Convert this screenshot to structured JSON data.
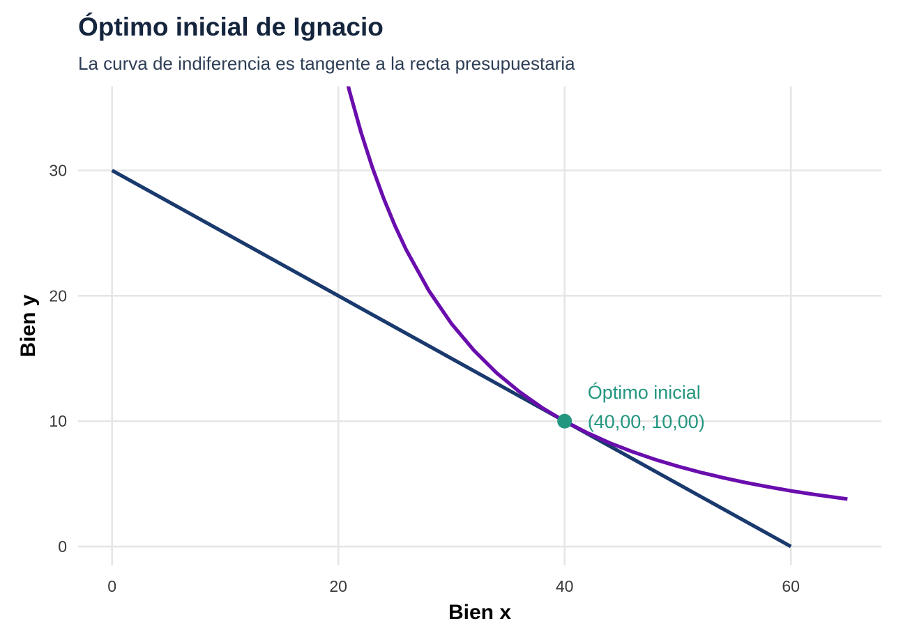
{
  "chart_data": {
    "type": "line",
    "title": "Óptimo inicial de Ignacio",
    "subtitle": "La curva de indiferencia es tangente a la recta presupuestaria",
    "xlabel": "Bien x",
    "ylabel": "Bien y",
    "xlim": [
      -3,
      68
    ],
    "ylim": [
      -1.5,
      36.7
    ],
    "x_ticks": [
      0,
      20,
      40,
      60
    ],
    "y_ticks": [
      0,
      10,
      20,
      30
    ],
    "x_tick_labels": [
      "0",
      "20",
      "40",
      "60"
    ],
    "y_tick_labels": [
      "0",
      "10",
      "20",
      "30"
    ],
    "grid": true,
    "series": [
      {
        "kind": "budget_line",
        "color": "#1a3a6e",
        "x": [
          0,
          60
        ],
        "y": [
          30,
          0
        ]
      },
      {
        "kind": "indifference_curve",
        "color": "#6a0dad",
        "x": [
          20.6,
          21,
          22,
          23,
          24,
          25,
          26,
          28,
          30,
          32,
          34,
          36,
          38,
          40,
          42,
          44,
          46,
          48,
          50,
          52,
          54,
          56,
          58,
          60,
          62,
          65
        ],
        "y": [
          37.7,
          36.28,
          33.06,
          30.25,
          27.78,
          25.6,
          23.67,
          20.41,
          17.78,
          15.63,
          13.84,
          12.35,
          11.08,
          10.0,
          9.07,
          8.26,
          7.56,
          6.94,
          6.4,
          5.92,
          5.49,
          5.1,
          4.76,
          4.44,
          4.16,
          3.79
        ]
      }
    ],
    "points": [
      {
        "x": 40,
        "y": 10,
        "color": "#239680",
        "label_line1": "Óptimo inicial",
        "label_line2": "(40,00, 10,00)"
      }
    ]
  }
}
